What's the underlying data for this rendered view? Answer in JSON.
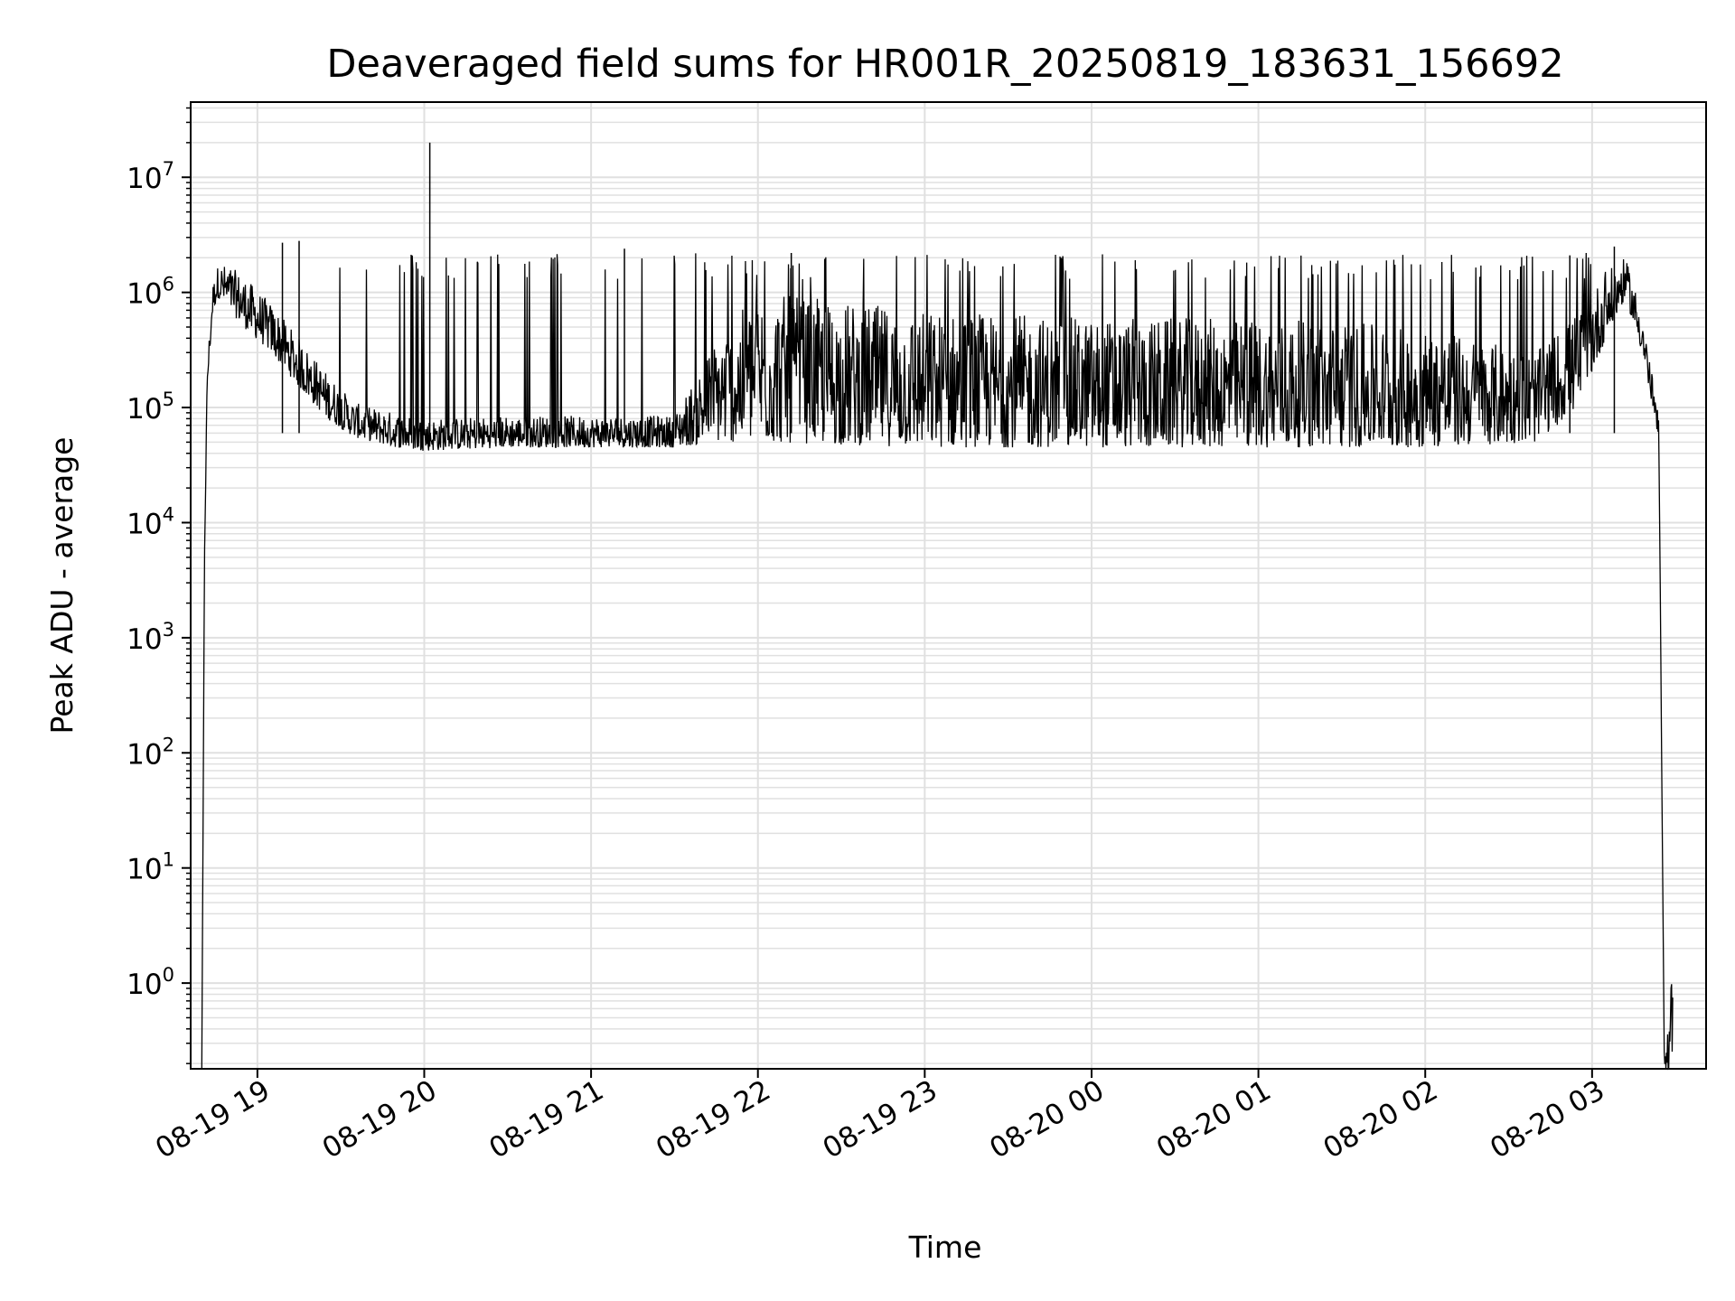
{
  "chart_data": {
    "type": "line",
    "title": "Deaveraged field sums for HR001R_20250819_183631_156692",
    "xlabel": "Time",
    "ylabel": "Peak ADU - average",
    "yscale": "log",
    "grid": true,
    "line_color": "#000000",
    "grid_color": "#e0e0e0",
    "xlim": [
      "08-19 18:36",
      "08-20 03:41"
    ],
    "ylim": [
      0.18,
      45000000
    ],
    "x_ticks": [
      "08-19 19",
      "08-19 20",
      "08-19 21",
      "08-19 22",
      "08-19 23",
      "08-20 00",
      "08-20 01",
      "08-20 02",
      "08-20 03"
    ],
    "y_ticks": [
      {
        "value": 1,
        "base": "10",
        "exp": "0"
      },
      {
        "value": 10,
        "base": "10",
        "exp": "1"
      },
      {
        "value": 100,
        "base": "10",
        "exp": "2"
      },
      {
        "value": 1000,
        "base": "10",
        "exp": "3"
      },
      {
        "value": 10000,
        "base": "10",
        "exp": "4"
      },
      {
        "value": 100000,
        "base": "10",
        "exp": "5"
      },
      {
        "value": 1000000,
        "base": "10",
        "exp": "6"
      },
      {
        "value": 10000000,
        "base": "10",
        "exp": "7"
      }
    ],
    "series": [
      {
        "envelope": [
          {
            "t": "08-19 18:40",
            "low": 0.18,
            "high": 0.18
          },
          {
            "t": "08-19 18:41",
            "low": 5000,
            "high": 8000
          },
          {
            "t": "08-19 18:42",
            "low": 150000,
            "high": 250000
          },
          {
            "t": "08-19 18:44",
            "low": 700000,
            "high": 1200000
          },
          {
            "t": "08-19 18:46",
            "low": 900000,
            "high": 1800000
          },
          {
            "t": "08-19 18:50",
            "low": 700000,
            "high": 1700000
          },
          {
            "t": "08-19 18:55",
            "low": 500000,
            "high": 1400000
          },
          {
            "t": "08-19 19:05",
            "low": 300000,
            "high": 800000
          },
          {
            "t": "08-19 19:15",
            "low": 150000,
            "high": 400000
          },
          {
            "t": "08-19 19:25",
            "low": 80000,
            "high": 200000
          },
          {
            "t": "08-19 19:35",
            "low": 55000,
            "high": 110000
          },
          {
            "t": "08-19 19:50",
            "low": 45000,
            "high": 90000
          },
          {
            "t": "08-19 20:00",
            "low": 42000,
            "high": 80000
          },
          {
            "t": "08-19 20:30",
            "low": 45000,
            "high": 85000
          },
          {
            "t": "08-19 21:00",
            "low": 45000,
            "high": 85000
          },
          {
            "t": "08-19 21:30",
            "low": 45000,
            "high": 85000
          },
          {
            "t": "08-19 21:45",
            "low": 50000,
            "high": 400000
          },
          {
            "t": "08-19 22:00",
            "low": 50000,
            "high": 1000000
          },
          {
            "t": "08-19 23:00",
            "low": 45000,
            "high": 700000
          },
          {
            "t": "08-20 00:00",
            "low": 45000,
            "high": 600000
          },
          {
            "t": "08-20 01:00",
            "low": 45000,
            "high": 600000
          },
          {
            "t": "08-20 02:00",
            "low": 45000,
            "high": 500000
          },
          {
            "t": "08-20 02:40",
            "low": 50000,
            "high": 300000
          },
          {
            "t": "08-20 02:55",
            "low": 100000,
            "high": 700000
          },
          {
            "t": "08-20 03:05",
            "low": 400000,
            "high": 1500000
          },
          {
            "t": "08-20 03:12",
            "low": 900000,
            "high": 2000000
          },
          {
            "t": "08-20 03:18",
            "low": 300000,
            "high": 700000
          },
          {
            "t": "08-20 03:24",
            "low": 50000,
            "high": 80000
          },
          {
            "t": "08-20 03:26",
            "low": 0.18,
            "high": 0.18
          },
          {
            "t": "08-20 03:29",
            "low": 0.18,
            "high": 1.7
          }
        ],
        "spikes": [
          {
            "t": "08-19 20:02",
            "value": 20000000
          },
          {
            "t": "08-19 19:15",
            "value": 2800000
          },
          {
            "t": "08-19 19:09",
            "value": 2700000
          },
          {
            "t": "08-19 21:12",
            "value": 2400000
          },
          {
            "t": "08-19 22:12",
            "value": 2200000
          },
          {
            "t": "08-20 03:08",
            "value": 2500000
          },
          {
            "t": "08-20 02:52",
            "value": 2100000
          }
        ]
      }
    ]
  }
}
